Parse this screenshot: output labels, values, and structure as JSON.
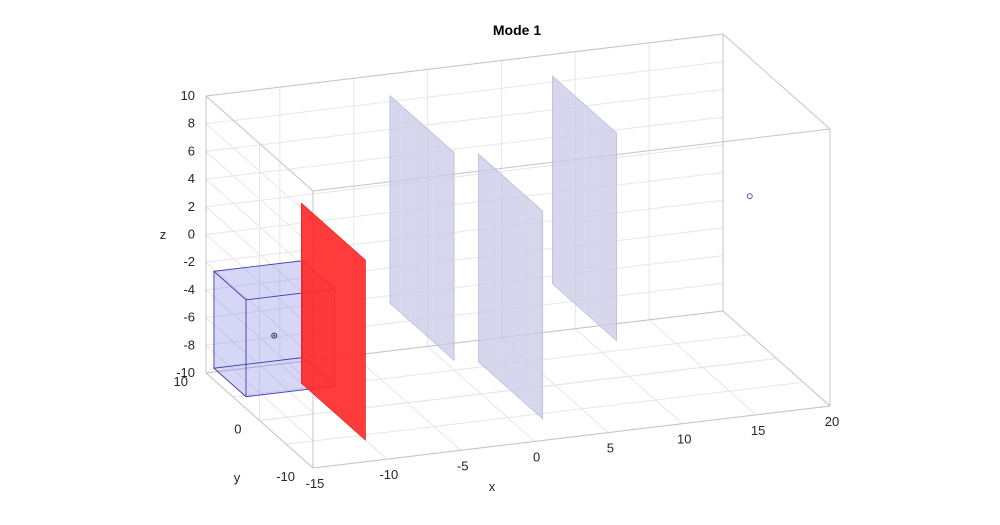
{
  "chart_data": {
    "type": "3d-scene",
    "title": "Mode 1",
    "xlabel": "x",
    "ylabel": "y",
    "zlabel": "z",
    "xlim": [
      -15,
      20
    ],
    "ylim": [
      -10,
      10
    ],
    "zlim": [
      -10,
      10
    ],
    "xticks": [
      "-15",
      "-10",
      "-5",
      "0",
      "5",
      "10",
      "15",
      "20"
    ],
    "yticks": [
      "-10",
      "0",
      "10"
    ],
    "zticks": [
      "10",
      "8",
      "6",
      "4",
      "2",
      "0",
      "-2",
      "-4",
      "-6",
      "-8",
      "-10"
    ],
    "grid": true,
    "objects": [
      {
        "name": "cube",
        "color": "#7a7ae0",
        "edge": "#3333aa",
        "x": [
          -17,
          -11
        ],
        "y": [
          -3,
          3
        ],
        "z": [
          -7,
          0
        ]
      },
      {
        "name": "source point",
        "color": "#333333",
        "x": -14,
        "y": 0,
        "z": -4
      },
      {
        "name": "red panel",
        "color": "#ff2a2a",
        "x": -10,
        "y": [
          -6,
          6
        ],
        "z": [
          -10,
          3
        ]
      },
      {
        "name": "panel",
        "color": "#c8c8e6",
        "x": -4,
        "y": [
          -6,
          6
        ],
        "z": [
          -5,
          10
        ]
      },
      {
        "name": "panel",
        "color": "#c8c8e6",
        "x": 2,
        "y": [
          -6,
          6
        ],
        "z": [
          -10,
          5
        ]
      },
      {
        "name": "panel",
        "color": "#c8c8e6",
        "x": 7,
        "y": [
          -6,
          6
        ],
        "z": [
          -5,
          10
        ]
      },
      {
        "name": "target point",
        "color": "#5555cc",
        "x": 20,
        "y": 5,
        "z": 0
      }
    ]
  }
}
